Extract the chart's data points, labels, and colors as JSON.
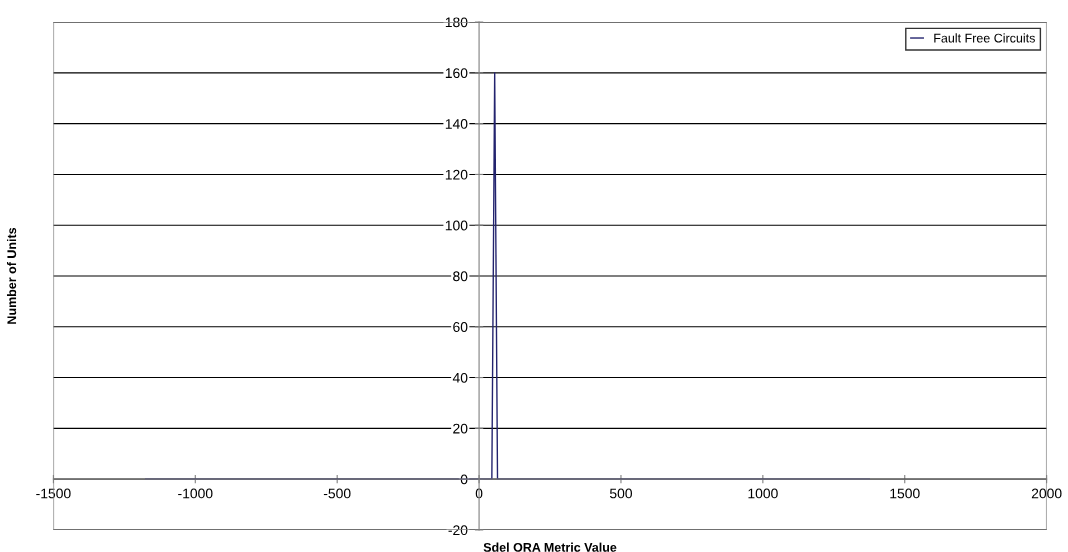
{
  "chart_data": {
    "type": "line",
    "xlabel": "Sdel ORA Metric Value",
    "ylabel": "Number of Units",
    "series": [
      {
        "name": "Fault Free Circuits",
        "color": "#23236e",
        "x": [
          -1175,
          45,
          55,
          65,
          1375
        ],
        "values": [
          0,
          0,
          160,
          0,
          0
        ]
      }
    ],
    "xlim": [
      -1500,
      2000
    ],
    "xticks": [
      -1500,
      -1000,
      -500,
      0,
      500,
      1000,
      1500,
      2000
    ],
    "ylim": [
      -20,
      180
    ],
    "yticks": [
      -20,
      0,
      20,
      40,
      60,
      80,
      100,
      120,
      140,
      160,
      180
    ],
    "grid": "y",
    "legend": "top right",
    "marker": "none",
    "line_style": "solid"
  }
}
